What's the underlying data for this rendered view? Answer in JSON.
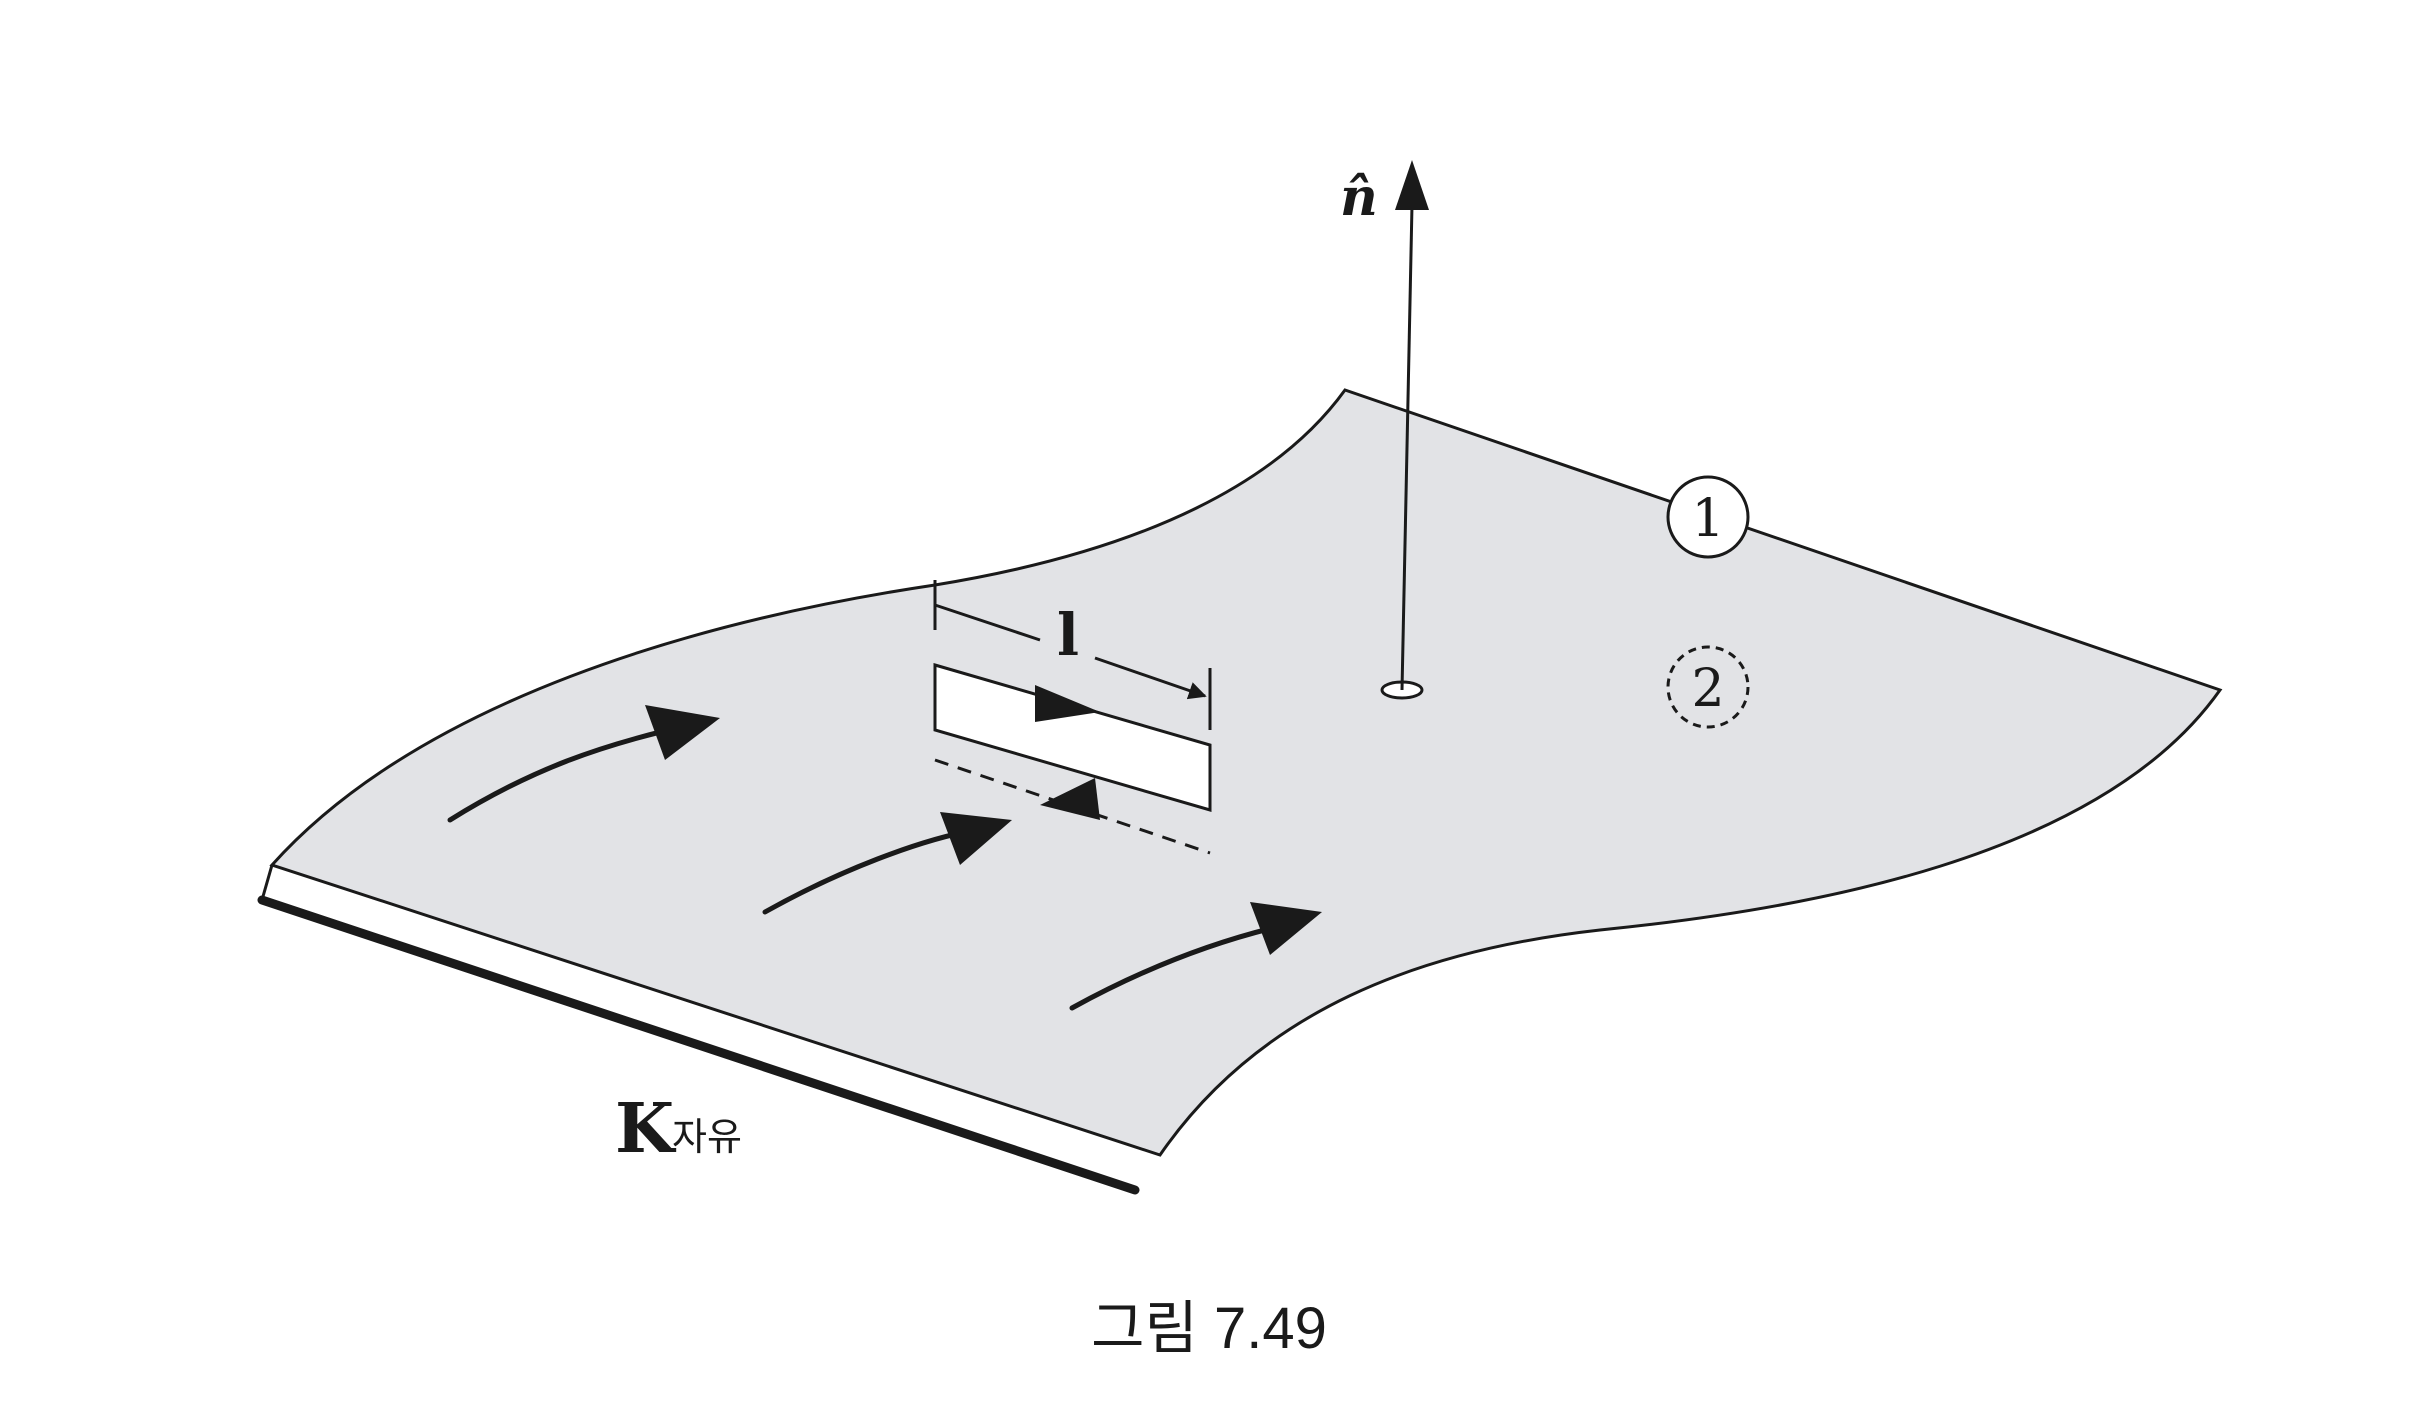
{
  "labels": {
    "normal_vector": "n̂",
    "loop_length": "l",
    "side_above": "1",
    "side_below": "2",
    "surface_current_symbol": "K",
    "surface_current_subscript": "자유",
    "caption": "그림 7.49"
  },
  "colors": {
    "surface_fill": "#e2e3e6",
    "outline": "#1a1a1a",
    "loop_fill": "#ffffff",
    "background": "#ffffff"
  },
  "icons": {
    "current_arrows": "curved-arrow-icon",
    "normal_arrow": "arrow-up-icon",
    "loop_arrows": "arrow-right-icon"
  }
}
